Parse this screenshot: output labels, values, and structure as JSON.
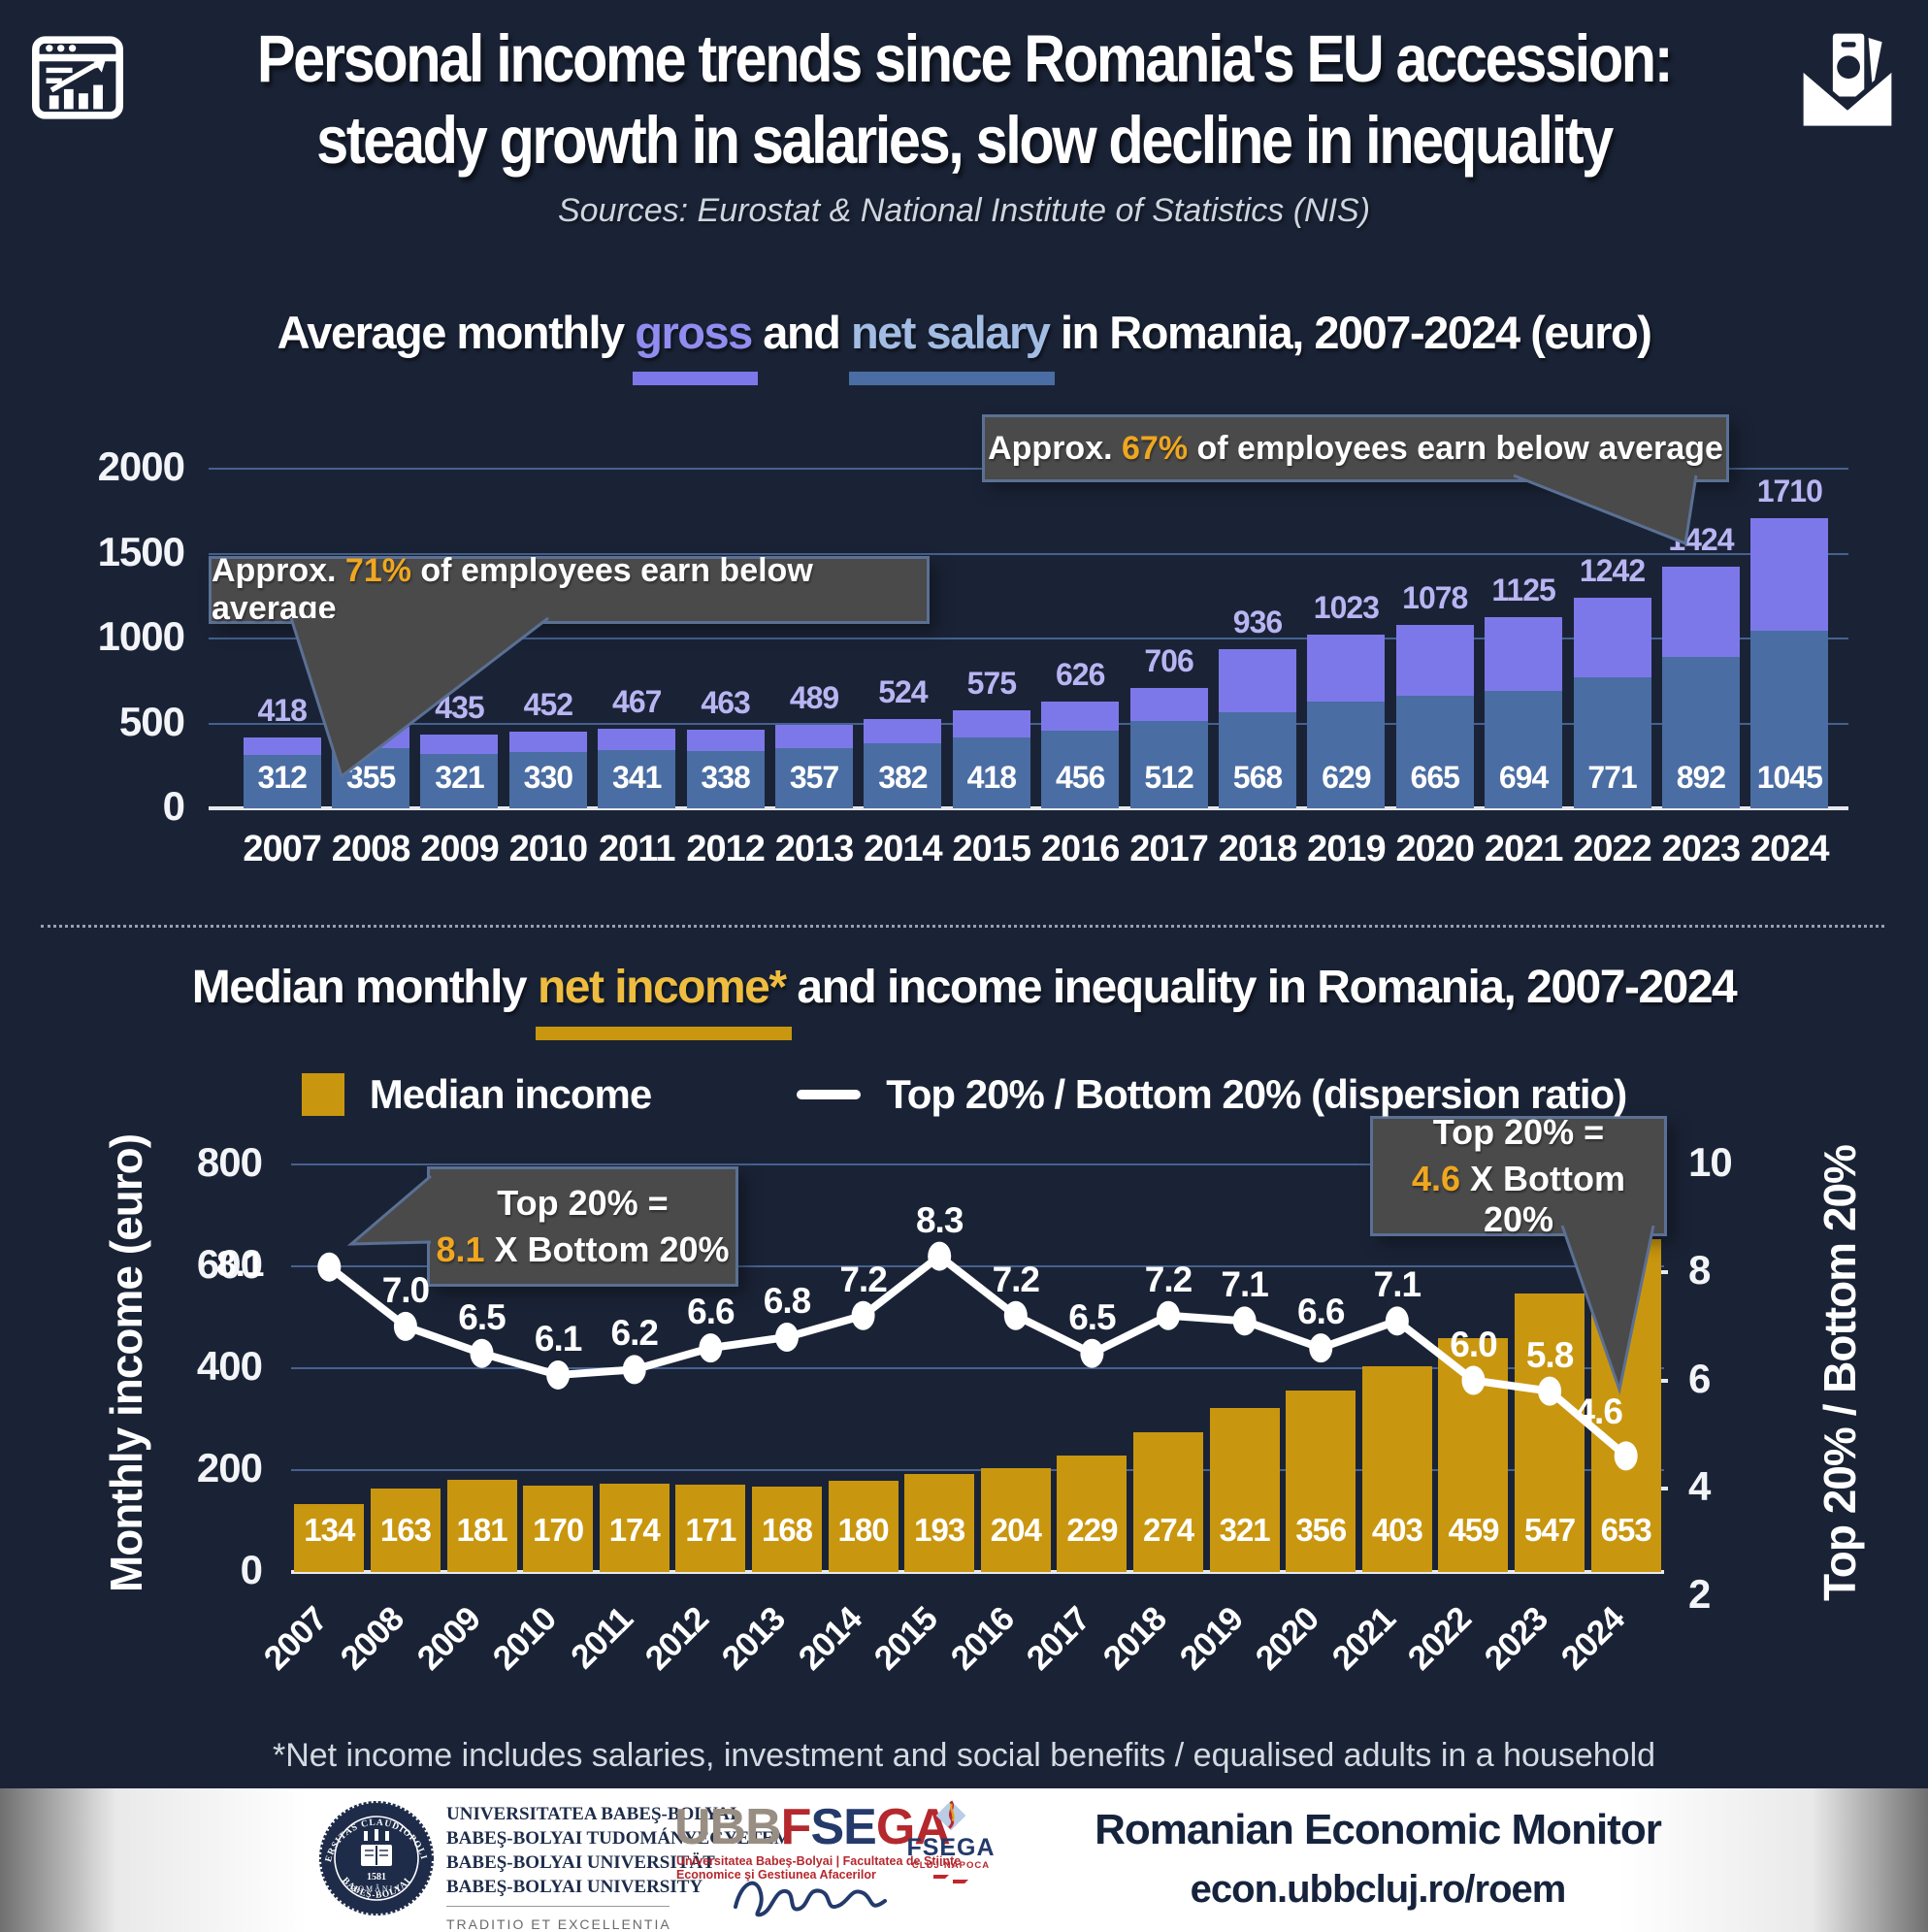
{
  "palette": {
    "background": "#1a2336",
    "gross_purple": "#7d78e9",
    "gross_label": "#b9b5f2",
    "net_blue": "#4a6da3",
    "median_gold": "#c9960f",
    "highlight_gold": "#f0a71f",
    "gridline": "#46618f",
    "annotation_bg": "#4a4a4a",
    "annotation_border": "#5b7094",
    "footer_navy": "#16233d",
    "logo_red": "#b5282e",
    "logo_navy": "#243a6b",
    "logo_gray": "#998e83"
  },
  "header": {
    "icon_left": "chart-browser-icon",
    "icon_right": "money-envelope-icon",
    "title_line1": "Personal income trends since Romania's EU accession:",
    "title_line2": "steady growth in salaries, slow decline in inequality",
    "subtitle": "Sources: Eurostat & National Institute of Statistics (NIS)"
  },
  "salary_section": {
    "title_pre": "Average monthly ",
    "title_gross": "gross",
    "title_mid": " and ",
    "title_net": "net salary",
    "title_post": " in Romania, 2007-2024 (euro)"
  },
  "income_section": {
    "title_pre": "Median monthly ",
    "title_highlight": "net income*",
    "title_post": " and income inequality in Romania, 2007-2024",
    "legend_median": "Median income",
    "legend_ratio": "Top 20% / Bottom 20% (dispersion ratio)",
    "footnote": "*Net income includes salaries, investment and social benefits / equalised adults in a household"
  },
  "chart_data": [
    {
      "type": "bar",
      "subtype": "stacked",
      "title": "Average monthly gross and net salary in Romania, 2007-2024 (euro)",
      "categories": [
        "2007",
        "2008",
        "2009",
        "2010",
        "2011",
        "2012",
        "2013",
        "2014",
        "2015",
        "2016",
        "2017",
        "2018",
        "2019",
        "2020",
        "2021",
        "2022",
        "2023",
        "2024"
      ],
      "series": [
        {
          "name": "Net salary",
          "color": "#4a6da3",
          "values": [
            312,
            355,
            321,
            330,
            341,
            338,
            357,
            382,
            418,
            456,
            512,
            568,
            629,
            665,
            694,
            771,
            892,
            1045
          ]
        },
        {
          "name": "Gross salary",
          "color": "#7d78e9",
          "values": [
            418,
            478,
            435,
            452,
            467,
            463,
            489,
            524,
            575,
            626,
            706,
            936,
            1023,
            1078,
            1125,
            1242,
            1424,
            1710
          ]
        }
      ],
      "ylim": [
        0,
        2000
      ],
      "yticks": [
        2000,
        1500,
        1000,
        500,
        0
      ],
      "grid": true,
      "legend_position": "title-inline",
      "annotations": [
        {
          "pre": "Approx. ",
          "value": "71%",
          "post": " of employees earn below average",
          "points_to": "2007"
        },
        {
          "pre": "Approx. ",
          "value": "67%",
          "post": " of employees earn below average",
          "points_to": "2023"
        }
      ]
    },
    {
      "type": "bar+line",
      "title": "Median monthly net income* and income inequality in Romania, 2007-2024",
      "categories": [
        "2007",
        "2008",
        "2009",
        "2010",
        "2011",
        "2012",
        "2013",
        "2014",
        "2015",
        "2016",
        "2017",
        "2018",
        "2019",
        "2020",
        "2021",
        "2022",
        "2023",
        "2024"
      ],
      "series": [
        {
          "name": "Median income",
          "chart": "bar",
          "axis": "left",
          "color": "#c9960f",
          "values": [
            134,
            163,
            181,
            170,
            174,
            171,
            168,
            180,
            193,
            204,
            229,
            274,
            321,
            356,
            403,
            459,
            547,
            653
          ]
        },
        {
          "name": "Top 20% / Bottom 20% (dispersion ratio)",
          "chart": "line",
          "axis": "right",
          "color": "#ffffff",
          "values": [
            8.1,
            7.0,
            6.5,
            6.1,
            6.2,
            6.6,
            6.8,
            7.2,
            8.3,
            7.2,
            6.5,
            7.2,
            7.1,
            6.6,
            7.1,
            6.0,
            5.8,
            4.6
          ]
        }
      ],
      "left_axis": {
        "label": "Monthly income (euro)",
        "ticks": [
          800,
          600,
          400,
          200,
          0
        ],
        "lim": [
          0,
          800
        ]
      },
      "right_axis": {
        "label": "Top 20% / Bottom 20%",
        "ticks": [
          10,
          8,
          6,
          4,
          2
        ],
        "lim": [
          2,
          10
        ]
      },
      "grid": true,
      "legend_position": "top-center",
      "annotations": [
        {
          "line1": "Top 20% =",
          "value": "8.1",
          "post": " X Bottom 20%",
          "points_to": "2007"
        },
        {
          "line1": "Top 20% =",
          "value": "4.6",
          "post": " X Bottom 20%",
          "points_to": "2024"
        }
      ]
    }
  ],
  "footer": {
    "seal_top": "UNIVERSITAS CLAUDIOPOLITANA",
    "seal_bottom": "BABEŞ-BOLYAI",
    "seal_year": "1581",
    "seal_country": "ROMÂNIA",
    "university_lines": [
      "UNIVERSITATEA BABEŞ-BOLYAI",
      "BABEŞ-BOLYAI TUDOMÁNYEGYETEM",
      "BABEŞ-BOLYAI UNIVERSITÄT",
      "BABEŞ-BOLYAI UNIVERSITY"
    ],
    "motto": "TRADITIO ET EXCELLENTIA",
    "logo_parts": [
      {
        "text": "UBB",
        "color": "#998e83"
      },
      {
        "text": "F",
        "color": "#b5282e"
      },
      {
        "text": "SE",
        "color": "#243a6b"
      },
      {
        "text": "GA",
        "color": "#b5282e"
      }
    ],
    "logo_subtitle": "Universitatea Babeş-Bolyai | Facultatea de Ştiinţe Economice şi Gestiunea Afacerilor",
    "fsega_logo": {
      "name": "FSEGA",
      "city": "CLUJ-NAPOCA"
    },
    "monitor_title": "Romanian Economic Monitor",
    "monitor_url": "econ.ubbcluj.ro/roem"
  }
}
